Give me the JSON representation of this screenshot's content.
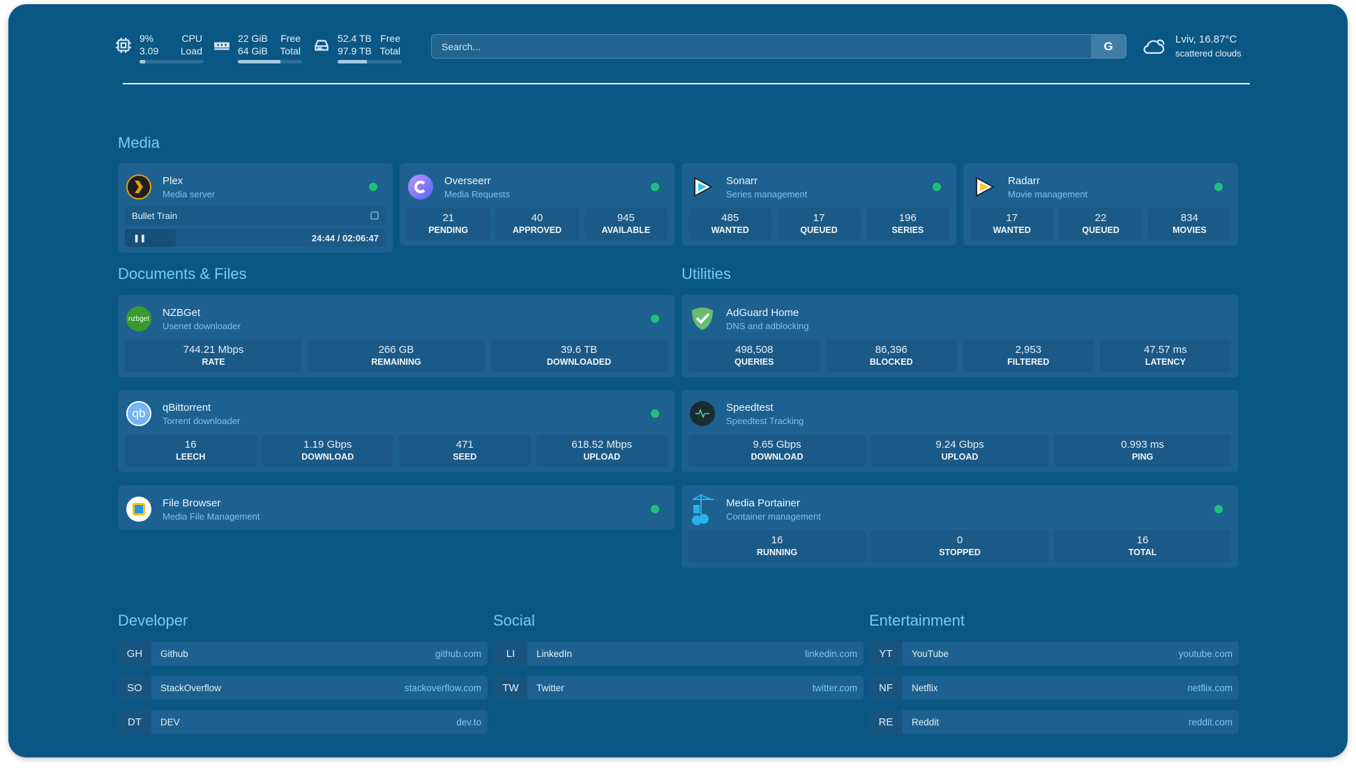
{
  "resources": {
    "cpu": {
      "icon": "cpu-icon",
      "value1": "9%",
      "label1": "CPU",
      "value2": "3.09",
      "label2": "Load",
      "usage": 0.09
    },
    "memory": {
      "icon": "memory-icon",
      "value1": "22 GiB",
      "label1": "Free",
      "value2": "64 GiB",
      "label2": "Total",
      "usage": 0.66
    },
    "disk": {
      "icon": "disk-icon",
      "value1": "52.4 TB",
      "label1": "Free",
      "value2": "97.9 TB",
      "label2": "Total",
      "usage": 0.46
    }
  },
  "search": {
    "placeholder": "Search...",
    "provider": "G"
  },
  "weather": {
    "icon": "cloud-icon",
    "location": "Lviv, 16.87°C",
    "condition": "scattered clouds"
  },
  "colors": {
    "background": "#0b5784",
    "card": "#1d6190",
    "accent": "#74cdf3",
    "status_ok": "#21c07a"
  },
  "groups": {
    "media": "Media",
    "documents": "Documents & Files",
    "utilities": "Utilities",
    "developer": "Developer",
    "social": "Social",
    "entertainment": "Entertainment"
  },
  "services": {
    "plex": {
      "name": "Plex",
      "desc": "Media server",
      "now_playing": {
        "title": "Bullet Train",
        "time": "24:44 / 02:06:47",
        "progress": 0.195
      }
    },
    "overseerr": {
      "name": "Overseerr",
      "desc": "Media Requests",
      "stats": [
        {
          "v": "21",
          "l": "PENDING"
        },
        {
          "v": "40",
          "l": "APPROVED"
        },
        {
          "v": "945",
          "l": "AVAILABLE"
        }
      ]
    },
    "sonarr": {
      "name": "Sonarr",
      "desc": "Series management",
      "stats": [
        {
          "v": "485",
          "l": "WANTED"
        },
        {
          "v": "17",
          "l": "QUEUED"
        },
        {
          "v": "196",
          "l": "SERIES"
        }
      ]
    },
    "radarr": {
      "name": "Radarr",
      "desc": "Movie management",
      "stats": [
        {
          "v": "17",
          "l": "WANTED"
        },
        {
          "v": "22",
          "l": "QUEUED"
        },
        {
          "v": "834",
          "l": "MOVIES"
        }
      ]
    },
    "nzbget": {
      "name": "NZBGet",
      "desc": "Usenet downloader",
      "logo_text": "nzbget",
      "stats": [
        {
          "v": "744.21 Mbps",
          "l": "RATE"
        },
        {
          "v": "266 GB",
          "l": "REMAINING"
        },
        {
          "v": "39.6 TB",
          "l": "DOWNLOADED"
        }
      ]
    },
    "qbittorrent": {
      "name": "qBittorrent",
      "desc": "Torrent downloader",
      "logo_text": "qb",
      "stats": [
        {
          "v": "16",
          "l": "LEECH"
        },
        {
          "v": "1.19 Gbps",
          "l": "DOWNLOAD"
        },
        {
          "v": "471",
          "l": "SEED"
        },
        {
          "v": "618.52 Mbps",
          "l": "UPLOAD"
        }
      ]
    },
    "filebrowser": {
      "name": "File Browser",
      "desc": "Media File Management"
    },
    "adguard": {
      "name": "AdGuard Home",
      "desc": "DNS and adblocking",
      "stats": [
        {
          "v": "498,508",
          "l": "QUERIES"
        },
        {
          "v": "86,396",
          "l": "BLOCKED"
        },
        {
          "v": "2,953",
          "l": "FILTERED"
        },
        {
          "v": "47.57 ms",
          "l": "LATENCY"
        }
      ]
    },
    "speedtest": {
      "name": "Speedtest",
      "desc": "Speedtest Tracking",
      "stats": [
        {
          "v": "9.65 Gbps",
          "l": "DOWNLOAD"
        },
        {
          "v": "9.24 Gbps",
          "l": "UPLOAD"
        },
        {
          "v": "0.993 ms",
          "l": "PING"
        }
      ]
    },
    "portainer": {
      "name": "Media Portainer",
      "desc": "Container management",
      "stats": [
        {
          "v": "16",
          "l": "RUNNING"
        },
        {
          "v": "0",
          "l": "STOPPED"
        },
        {
          "v": "16",
          "l": "TOTAL"
        }
      ]
    }
  },
  "bookmarks": {
    "developer": [
      {
        "abbr": "GH",
        "name": "Github",
        "url": "github.com"
      },
      {
        "abbr": "SO",
        "name": "StackOverflow",
        "url": "stackoverflow.com"
      },
      {
        "abbr": "DT",
        "name": "DEV",
        "url": "dev.to"
      }
    ],
    "social": [
      {
        "abbr": "LI",
        "name": "LinkedIn",
        "url": "linkedin.com"
      },
      {
        "abbr": "TW",
        "name": "Twitter",
        "url": "twitter.com"
      }
    ],
    "entertainment": [
      {
        "abbr": "YT",
        "name": "YouTube",
        "url": "youtube.com"
      },
      {
        "abbr": "NF",
        "name": "Netflix",
        "url": "netflix.com"
      },
      {
        "abbr": "RE",
        "name": "Reddit",
        "url": "reddit.com"
      }
    ]
  }
}
